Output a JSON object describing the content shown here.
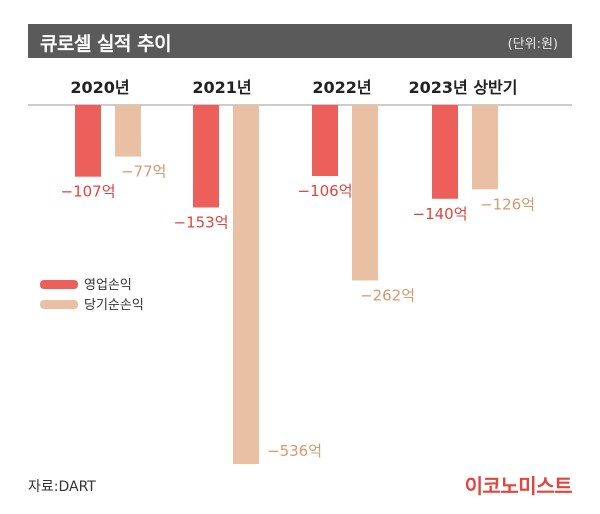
{
  "header": {
    "title": "큐로셀 실적 추이",
    "unit": "(단위:원)"
  },
  "footer": {
    "source": "자료:DART",
    "brand": "이코노미스트"
  },
  "colors": {
    "operating": "#ec5f5a",
    "net": "#eac0a5",
    "operating_label": "#e0453f",
    "net_label": "#d49a72",
    "header_bg": "#5a5a5a"
  },
  "chart_data": {
    "type": "bar",
    "categories": [
      "2020년",
      "2021년",
      "2022년",
      "2023년 상반기"
    ],
    "series": [
      {
        "name": "영업손익",
        "values": [
          -107,
          -153,
          -106,
          -140
        ],
        "labels": [
          "−107억",
          "−153억",
          "−106억",
          "−140억"
        ]
      },
      {
        "name": "당기순손익",
        "values": [
          -77,
          -536,
          -262,
          -126
        ],
        "labels": [
          "−77억",
          "−536억",
          "−262억",
          "−126억"
        ]
      }
    ],
    "ylim": [
      -536,
      0
    ],
    "legend": "left-middle",
    "grid": false
  }
}
